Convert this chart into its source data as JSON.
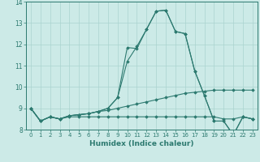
{
  "background_color": "#cceae7",
  "grid_color": "#aad4d0",
  "line_color": "#2d7a70",
  "x_label": "Humidex (Indice chaleur)",
  "xlim": [
    -0.5,
    23.5
  ],
  "ylim": [
    8,
    14
  ],
  "yticks": [
    8,
    9,
    10,
    11,
    12,
    13,
    14
  ],
  "xticks": [
    0,
    1,
    2,
    3,
    4,
    5,
    6,
    7,
    8,
    9,
    10,
    11,
    12,
    13,
    14,
    15,
    16,
    17,
    18,
    19,
    20,
    21,
    22,
    23
  ],
  "series": [
    {
      "x": [
        0,
        1,
        2,
        3,
        4,
        5,
        6,
        7,
        8,
        9,
        10,
        11,
        12,
        13,
        14,
        15,
        16,
        17,
        18,
        19,
        20,
        21,
        22,
        23
      ],
      "y": [
        9.0,
        8.4,
        8.6,
        8.5,
        8.6,
        8.6,
        8.6,
        8.6,
        8.6,
        8.6,
        8.6,
        8.6,
        8.6,
        8.6,
        8.6,
        8.6,
        8.6,
        8.6,
        8.6,
        8.6,
        8.5,
        8.5,
        8.6,
        8.5
      ]
    },
    {
      "x": [
        0,
        1,
        2,
        3,
        4,
        5,
        6,
        7,
        8,
        9,
        10,
        11,
        12,
        13,
        14,
        15,
        16,
        17,
        18,
        19,
        20,
        21,
        22,
        23
      ],
      "y": [
        9.0,
        8.4,
        8.6,
        8.5,
        8.65,
        8.7,
        8.75,
        8.85,
        8.9,
        9.0,
        9.1,
        9.2,
        9.3,
        9.4,
        9.5,
        9.6,
        9.7,
        9.75,
        9.8,
        9.85,
        9.85,
        9.85,
        9.85,
        9.85
      ]
    },
    {
      "x": [
        0,
        1,
        2,
        3,
        4,
        5,
        6,
        7,
        8,
        9,
        10,
        11,
        12,
        13,
        14,
        15,
        16,
        17,
        18,
        19,
        20,
        21,
        22,
        23
      ],
      "y": [
        9.0,
        8.4,
        8.6,
        8.5,
        8.65,
        8.7,
        8.75,
        8.85,
        9.0,
        9.5,
        11.2,
        11.9,
        12.7,
        13.55,
        13.6,
        12.6,
        12.5,
        10.75,
        9.6,
        8.4,
        8.4,
        7.75,
        8.6,
        8.5
      ]
    },
    {
      "x": [
        0,
        1,
        2,
        3,
        4,
        5,
        6,
        7,
        8,
        9,
        10,
        11,
        12,
        13,
        14,
        15,
        16,
        17,
        18,
        19,
        20,
        21,
        22,
        23
      ],
      "y": [
        9.0,
        8.4,
        8.6,
        8.5,
        8.65,
        8.7,
        8.75,
        8.85,
        9.0,
        9.5,
        11.85,
        11.8,
        12.7,
        13.55,
        13.6,
        12.6,
        12.5,
        10.75,
        9.6,
        8.4,
        8.4,
        7.75,
        8.6,
        8.5
      ]
    }
  ]
}
